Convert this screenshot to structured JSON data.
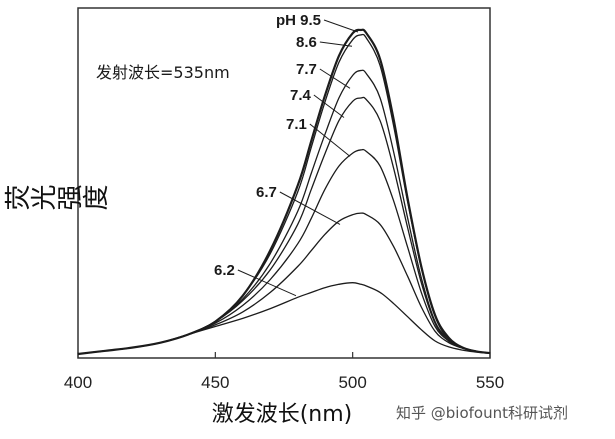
{
  "chart_data": {
    "type": "line",
    "title": "",
    "xlabel": "激发波长(nm)",
    "ylabel": "荧光强度",
    "xlim": [
      400,
      550
    ],
    "ylim": [
      0,
      1.0
    ],
    "xticks": [
      400,
      450,
      500,
      550
    ],
    "grid": false,
    "annotation_text": "发射波长=535nm",
    "series": [
      {
        "name": "pH 9.5",
        "x": [
          400,
          410,
          420,
          430,
          440,
          450,
          460,
          470,
          480,
          485,
          490,
          495,
          500,
          503,
          505,
          510,
          515,
          520,
          525,
          530,
          535,
          540,
          545,
          550
        ],
        "y": [
          0.0,
          0.01,
          0.02,
          0.035,
          0.06,
          0.1,
          0.18,
          0.32,
          0.52,
          0.66,
          0.8,
          0.92,
          0.99,
          1.0,
          0.99,
          0.91,
          0.72,
          0.48,
          0.27,
          0.12,
          0.05,
          0.02,
          0.008,
          0.003
        ]
      },
      {
        "name": "8.6",
        "x": [
          400,
          410,
          420,
          430,
          440,
          450,
          460,
          470,
          480,
          485,
          490,
          495,
          500,
          503,
          505,
          510,
          515,
          520,
          525,
          530,
          535,
          540,
          545,
          550
        ],
        "y": [
          0.0,
          0.01,
          0.02,
          0.035,
          0.06,
          0.1,
          0.18,
          0.31,
          0.5,
          0.64,
          0.78,
          0.9,
          0.97,
          0.985,
          0.975,
          0.89,
          0.7,
          0.47,
          0.265,
          0.115,
          0.045,
          0.02,
          0.008,
          0.003
        ]
      },
      {
        "name": "7.7",
        "x": [
          400,
          410,
          420,
          430,
          440,
          450,
          460,
          470,
          480,
          485,
          490,
          495,
          500,
          503,
          505,
          510,
          515,
          520,
          525,
          530,
          535,
          540,
          545,
          550
        ],
        "y": [
          0.0,
          0.01,
          0.02,
          0.035,
          0.06,
          0.1,
          0.17,
          0.28,
          0.44,
          0.56,
          0.68,
          0.79,
          0.86,
          0.875,
          0.865,
          0.79,
          0.62,
          0.42,
          0.235,
          0.1,
          0.045,
          0.02,
          0.008,
          0.003
        ]
      },
      {
        "name": "7.4",
        "x": [
          400,
          410,
          420,
          430,
          440,
          450,
          460,
          470,
          480,
          485,
          490,
          495,
          500,
          503,
          505,
          510,
          515,
          520,
          525,
          530,
          535,
          540,
          545,
          550
        ],
        "y": [
          0.0,
          0.01,
          0.02,
          0.035,
          0.06,
          0.1,
          0.165,
          0.26,
          0.4,
          0.51,
          0.62,
          0.72,
          0.78,
          0.79,
          0.785,
          0.72,
          0.57,
          0.39,
          0.22,
          0.095,
          0.04,
          0.02,
          0.008,
          0.003
        ]
      },
      {
        "name": "7.1",
        "x": [
          400,
          410,
          420,
          430,
          440,
          450,
          460,
          470,
          480,
          485,
          490,
          495,
          500,
          503,
          505,
          510,
          515,
          520,
          525,
          530,
          535,
          540,
          545,
          550
        ],
        "y": [
          0.0,
          0.01,
          0.02,
          0.035,
          0.06,
          0.095,
          0.15,
          0.23,
          0.34,
          0.42,
          0.51,
          0.58,
          0.62,
          0.63,
          0.625,
          0.58,
          0.47,
          0.33,
          0.19,
          0.085,
          0.04,
          0.02,
          0.008,
          0.003
        ]
      },
      {
        "name": "6.7",
        "x": [
          400,
          410,
          420,
          430,
          440,
          450,
          460,
          470,
          480,
          485,
          490,
          495,
          500,
          503,
          505,
          510,
          515,
          520,
          525,
          530,
          535,
          540,
          545,
          550
        ],
        "y": [
          0.0,
          0.01,
          0.02,
          0.035,
          0.06,
          0.09,
          0.13,
          0.19,
          0.27,
          0.32,
          0.37,
          0.41,
          0.43,
          0.435,
          0.43,
          0.4,
          0.33,
          0.24,
          0.145,
          0.07,
          0.035,
          0.018,
          0.008,
          0.003
        ]
      },
      {
        "name": "6.2",
        "x": [
          400,
          410,
          420,
          430,
          440,
          450,
          460,
          470,
          480,
          485,
          490,
          495,
          500,
          503,
          505,
          510,
          515,
          520,
          525,
          530,
          535,
          540,
          545,
          550
        ],
        "y": [
          0.0,
          0.01,
          0.02,
          0.035,
          0.06,
          0.085,
          0.11,
          0.14,
          0.175,
          0.19,
          0.205,
          0.215,
          0.22,
          0.215,
          0.21,
          0.19,
          0.155,
          0.115,
          0.075,
          0.04,
          0.022,
          0.012,
          0.006,
          0.002
        ]
      }
    ]
  },
  "watermark": "知乎 @biofount科研试剂",
  "colors": {
    "line": "#1c1c1c",
    "axis": "#333333",
    "background": "#ffffff"
  }
}
